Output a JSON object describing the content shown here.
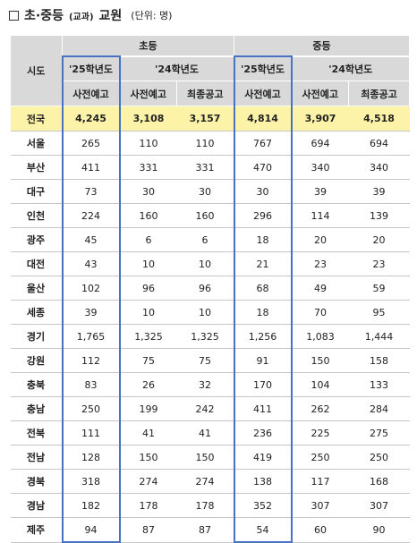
{
  "title": {
    "main": "초·중등",
    "paren": "(교과)",
    "sub": "교원",
    "unit": "(단위: 명)"
  },
  "headers": {
    "sido": "시도",
    "elementary": "초등",
    "middle": "중등",
    "y25": "'25학년도",
    "y24": "'24학년도",
    "pre_notice": "사전예고",
    "final_notice": "최종공고"
  },
  "rows": [
    {
      "region": "전국",
      "e25": "4,245",
      "e24pre": "3,108",
      "e24fin": "3,157",
      "m25": "4,814",
      "m24pre": "3,907",
      "m24fin": "4,518"
    },
    {
      "region": "서울",
      "e25": "265",
      "e24pre": "110",
      "e24fin": "110",
      "m25": "767",
      "m24pre": "694",
      "m24fin": "694"
    },
    {
      "region": "부산",
      "e25": "411",
      "e24pre": "331",
      "e24fin": "331",
      "m25": "470",
      "m24pre": "340",
      "m24fin": "340"
    },
    {
      "region": "대구",
      "e25": "73",
      "e24pre": "30",
      "e24fin": "30",
      "m25": "30",
      "m24pre": "39",
      "m24fin": "39"
    },
    {
      "region": "인천",
      "e25": "224",
      "e24pre": "160",
      "e24fin": "160",
      "m25": "296",
      "m24pre": "114",
      "m24fin": "139"
    },
    {
      "region": "광주",
      "e25": "45",
      "e24pre": "6",
      "e24fin": "6",
      "m25": "18",
      "m24pre": "20",
      "m24fin": "20"
    },
    {
      "region": "대전",
      "e25": "43",
      "e24pre": "10",
      "e24fin": "10",
      "m25": "21",
      "m24pre": "23",
      "m24fin": "23"
    },
    {
      "region": "울산",
      "e25": "102",
      "e24pre": "96",
      "e24fin": "96",
      "m25": "68",
      "m24pre": "49",
      "m24fin": "59"
    },
    {
      "region": "세종",
      "e25": "39",
      "e24pre": "10",
      "e24fin": "10",
      "m25": "18",
      "m24pre": "70",
      "m24fin": "95"
    },
    {
      "region": "경기",
      "e25": "1,765",
      "e24pre": "1,325",
      "e24fin": "1,325",
      "m25": "1,256",
      "m24pre": "1,083",
      "m24fin": "1,444"
    },
    {
      "region": "강원",
      "e25": "112",
      "e24pre": "75",
      "e24fin": "75",
      "m25": "91",
      "m24pre": "150",
      "m24fin": "158"
    },
    {
      "region": "충북",
      "e25": "83",
      "e24pre": "26",
      "e24fin": "32",
      "m25": "170",
      "m24pre": "104",
      "m24fin": "133"
    },
    {
      "region": "충남",
      "e25": "250",
      "e24pre": "199",
      "e24fin": "242",
      "m25": "411",
      "m24pre": "262",
      "m24fin": "284"
    },
    {
      "region": "전북",
      "e25": "111",
      "e24pre": "41",
      "e24fin": "41",
      "m25": "236",
      "m24pre": "225",
      "m24fin": "275"
    },
    {
      "region": "전남",
      "e25": "128",
      "e24pre": "150",
      "e24fin": "150",
      "m25": "419",
      "m24pre": "250",
      "m24fin": "250"
    },
    {
      "region": "경북",
      "e25": "318",
      "e24pre": "274",
      "e24fin": "274",
      "m25": "138",
      "m24pre": "117",
      "m24fin": "168"
    },
    {
      "region": "경남",
      "e25": "182",
      "e24pre": "178",
      "e24fin": "178",
      "m25": "352",
      "m24pre": "307",
      "m24fin": "307"
    },
    {
      "region": "제주",
      "e25": "94",
      "e24pre": "87",
      "e24fin": "87",
      "m25": "54",
      "m24pre": "60",
      "m24fin": "90"
    }
  ],
  "colors": {
    "header_bg": "#d9d9d9",
    "total_bg": "#fdf3a8",
    "highlight_border": "#4a72c4"
  }
}
